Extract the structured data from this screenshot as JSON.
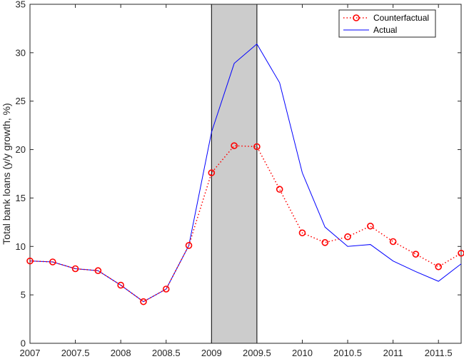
{
  "chart_data": {
    "type": "line",
    "ylabel": "Total bank loans (y/y growth, %)",
    "xlabel": "",
    "xlim": [
      2007,
      2011.75
    ],
    "ylim": [
      0,
      35
    ],
    "x_ticks": [
      "2007",
      "2007.5",
      "2008",
      "2008.5",
      "2009",
      "2009.5",
      "2010",
      "2010.5",
      "2011",
      "2011.5"
    ],
    "y_ticks": [
      "0",
      "5",
      "10",
      "15",
      "20",
      "25",
      "30",
      "35"
    ],
    "shaded_region": [
      2009,
      2009.5
    ],
    "legend": {
      "position": "top-right"
    },
    "x": [
      2007,
      2007.25,
      2007.5,
      2007.75,
      2008,
      2008.25,
      2008.5,
      2008.75,
      2009,
      2009.25,
      2009.5,
      2009.75,
      2010,
      2010.25,
      2010.5,
      2010.75,
      2011,
      2011.25,
      2011.5,
      2011.75
    ],
    "series": [
      {
        "name": "Counterfactual",
        "color": "#ff0000",
        "style": "dotted-circle",
        "values": [
          8.5,
          8.4,
          7.7,
          7.5,
          6.0,
          4.3,
          5.6,
          10.1,
          17.6,
          20.4,
          20.3,
          15.9,
          11.4,
          10.4,
          11.0,
          12.1,
          10.5,
          9.2,
          7.9,
          9.3
        ]
      },
      {
        "name": "Actual",
        "color": "#0000ff",
        "style": "solid",
        "values": [
          8.5,
          8.4,
          7.7,
          7.5,
          6.0,
          4.3,
          5.6,
          10.1,
          21.8,
          28.9,
          30.9,
          26.9,
          17.6,
          12.0,
          10.0,
          10.2,
          8.5,
          7.4,
          6.4,
          8.2
        ]
      }
    ]
  }
}
